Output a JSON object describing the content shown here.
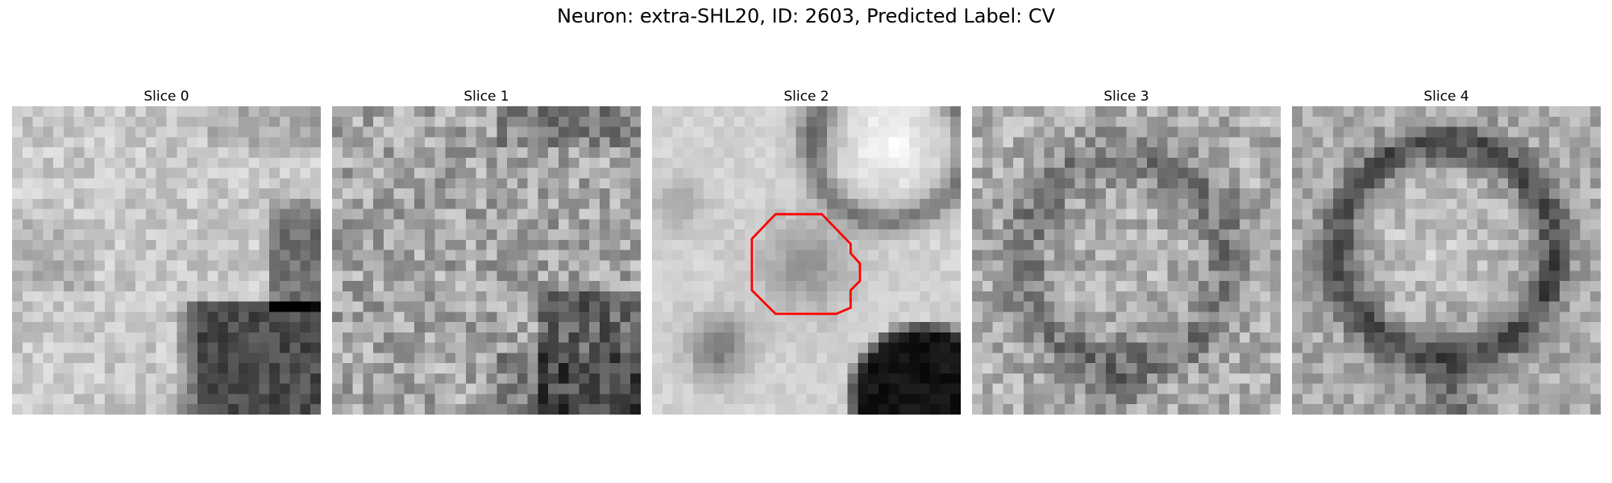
{
  "figure": {
    "title": "Neuron: extra-SHL20, ID: 2603, Predicted Label: CV",
    "outline_color": "#ff0000"
  },
  "slices": [
    {
      "title": "Slice 0"
    },
    {
      "title": "Slice 1"
    },
    {
      "title": "Slice 2"
    },
    {
      "title": "Slice 3"
    },
    {
      "title": "Slice 4"
    }
  ]
}
